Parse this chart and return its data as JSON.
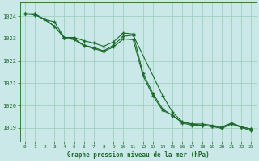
{
  "bg_color": "#cbe8e8",
  "grid_color": "#99ccbb",
  "line_color": "#1a6b2a",
  "marker_color": "#1a6b2a",
  "xlabel": "Graphe pression niveau de la mer (hPa)",
  "xlabel_color": "#1a6b2a",
  "tick_color": "#1a6b2a",
  "xlim": [
    -0.5,
    23.5
  ],
  "ylim": [
    1018.4,
    1024.6
  ],
  "yticks": [
    1019,
    1020,
    1021,
    1022,
    1023,
    1024
  ],
  "xticks": [
    0,
    1,
    2,
    3,
    4,
    5,
    6,
    7,
    8,
    9,
    10,
    11,
    12,
    13,
    14,
    15,
    16,
    17,
    18,
    19,
    20,
    21,
    22,
    23
  ],
  "series1": {
    "x": [
      0,
      1,
      2,
      3,
      4,
      5,
      6,
      7,
      8,
      9,
      10,
      11,
      12,
      13,
      14,
      15,
      16,
      17,
      18,
      19,
      20,
      21,
      22,
      23
    ],
    "y": [
      1024.1,
      1024.1,
      1023.85,
      1023.75,
      1023.05,
      1023.05,
      1022.9,
      1022.8,
      1022.65,
      1022.85,
      1023.25,
      1023.2,
      1021.45,
      1020.55,
      1019.85,
      1019.55,
      1019.25,
      1019.18,
      1019.18,
      1019.12,
      1019.05,
      1019.22,
      1019.05,
      1018.95
    ]
  },
  "series2": {
    "x": [
      0,
      1,
      2,
      3,
      4,
      5,
      6,
      7,
      8,
      9,
      10,
      11,
      14,
      15,
      16,
      17,
      18,
      19,
      20,
      21,
      22,
      23
    ],
    "y": [
      1024.1,
      1024.1,
      1023.85,
      1023.55,
      1023.05,
      1023.0,
      1022.7,
      1022.6,
      1022.45,
      1022.7,
      1023.1,
      1023.15,
      1020.45,
      1019.7,
      1019.28,
      1019.18,
      1019.12,
      1019.07,
      1019.02,
      1019.22,
      1019.05,
      1018.95
    ]
  },
  "series3": {
    "x": [
      0,
      1,
      2,
      3,
      4,
      5,
      6,
      7,
      8,
      9,
      10,
      11,
      12,
      13,
      14,
      15,
      16,
      17,
      18,
      19,
      20,
      21,
      22,
      23
    ],
    "y": [
      1024.1,
      1024.05,
      1023.88,
      1023.55,
      1023.02,
      1022.95,
      1022.68,
      1022.55,
      1022.42,
      1022.62,
      1022.98,
      1022.95,
      1021.35,
      1020.45,
      1019.78,
      1019.58,
      1019.22,
      1019.12,
      1019.12,
      1019.07,
      1018.98,
      1019.18,
      1019.02,
      1018.88
    ]
  }
}
